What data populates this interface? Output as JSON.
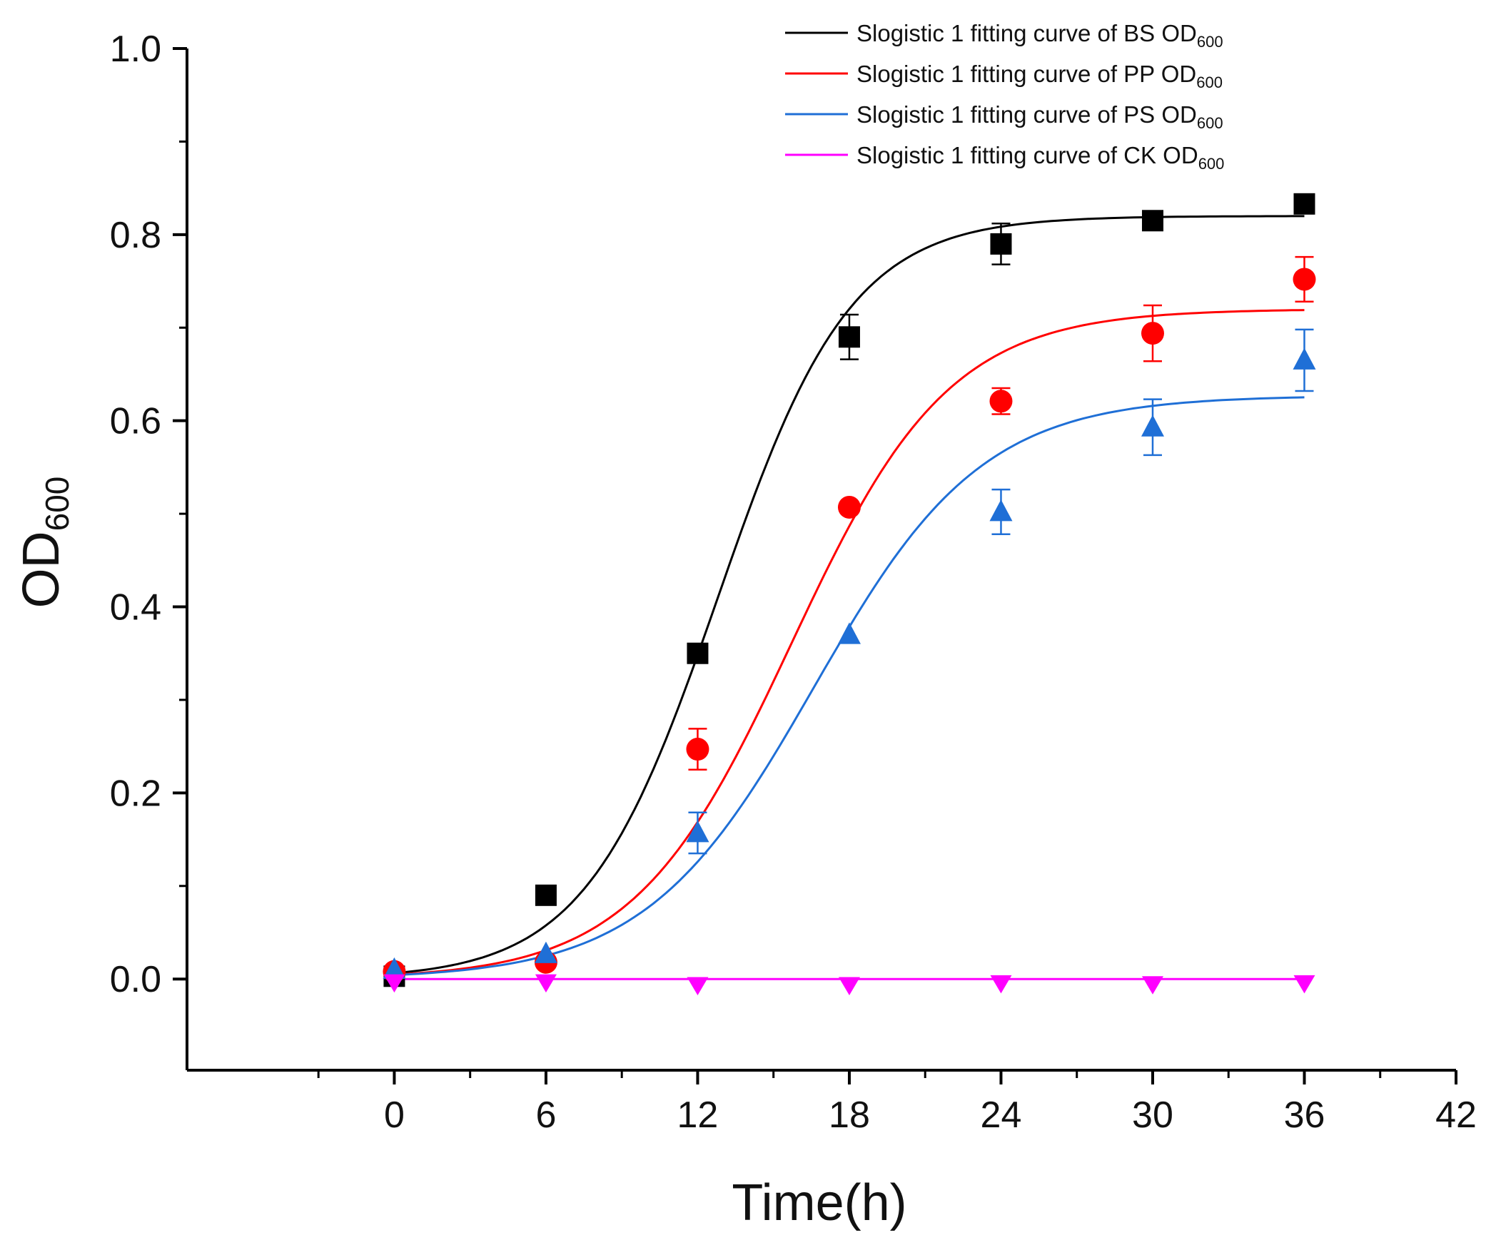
{
  "chart_data": {
    "type": "scatter",
    "xlabel": "Time(h)",
    "ylabel": {
      "main": "OD",
      "sub": "600"
    },
    "xlim": [
      -8.2,
      42
    ],
    "ylim": [
      -0.098,
      1.0
    ],
    "x_ticks": [
      0,
      6,
      12,
      18,
      24,
      30,
      36,
      42
    ],
    "x_tick_labels": [
      "0",
      "6",
      "12",
      "18",
      "24",
      "30",
      "36",
      "42"
    ],
    "y_ticks": [
      0.0,
      0.2,
      0.4,
      0.6,
      0.8,
      1.0
    ],
    "y_tick_labels": [
      "0.0",
      "0.2",
      "0.4",
      "0.6",
      "0.8",
      "1.0"
    ],
    "grid": false,
    "legend_position": "top-right",
    "x": [
      0,
      6,
      12,
      18,
      24,
      30,
      36
    ],
    "series": [
      {
        "name": "BS",
        "legend_label": "Slogistic 1 fitting curve of BS OD",
        "legend_sub": "600",
        "color": "#000000",
        "marker": "square",
        "values": [
          0.003,
          0.09,
          0.35,
          0.69,
          0.79,
          0.815,
          0.833
        ],
        "errors": [
          0.0,
          0.0,
          0.0,
          0.024,
          0.022,
          0.0,
          0.0
        ],
        "fit": {
          "a": 0.82,
          "xc": 12.8,
          "k": 0.38
        }
      },
      {
        "name": "PP",
        "legend_label": "Slogistic 1 fitting curve of PP OD",
        "legend_sub": "600",
        "color": "#ff0000",
        "marker": "circle",
        "values": [
          0.008,
          0.018,
          0.247,
          0.507,
          0.621,
          0.694,
          0.752
        ],
        "errors": [
          0.0,
          0.0,
          0.022,
          0.0,
          0.014,
          0.03,
          0.024
        ],
        "fit": {
          "a": 0.72,
          "xc": 15.7,
          "k": 0.32
        }
      },
      {
        "name": "PS",
        "legend_label": "Slogistic 1 fitting curve of PS OD",
        "legend_sub": "600",
        "color": "#1f6fd6",
        "marker": "triangle-up",
        "values": [
          0.01,
          0.027,
          0.157,
          0.37,
          0.502,
          0.593,
          0.665
        ],
        "errors": [
          0.0,
          0.0,
          0.022,
          0.0,
          0.024,
          0.03,
          0.033
        ],
        "fit": {
          "a": 0.627,
          "xc": 16.6,
          "k": 0.3
        }
      },
      {
        "name": "CK",
        "legend_label": "Slogistic 1 fitting curve of CK OD",
        "legend_sub": "600",
        "color": "#ff00ff",
        "marker": "triangle-down",
        "values": [
          -0.003,
          -0.003,
          -0.006,
          -0.006,
          -0.004,
          -0.005,
          -0.004
        ],
        "errors": [
          0.0,
          0.0,
          0.0,
          0.0,
          0.0,
          0.0,
          0.0
        ],
        "fit": {
          "a": 0.0,
          "xc": 15.0,
          "k": 0.3
        }
      }
    ]
  }
}
